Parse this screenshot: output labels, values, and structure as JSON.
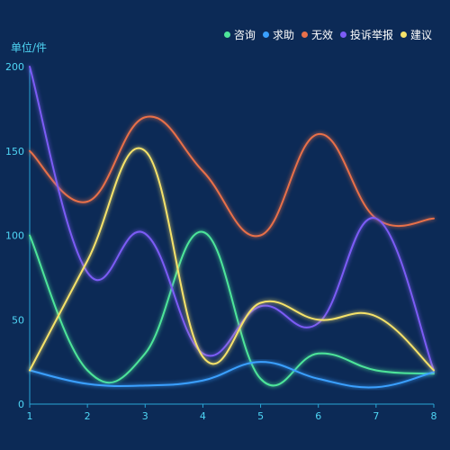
{
  "chart_data": {
    "type": "line",
    "unit_label": "单位/件",
    "x": [
      "1",
      "2",
      "3",
      "4",
      "5",
      "6",
      "7",
      "8"
    ],
    "ylim": [
      0,
      200
    ],
    "y_ticks": [
      "0",
      "50",
      "100",
      "150",
      "200"
    ],
    "series": [
      {
        "name": "咨询",
        "color": "#4ee59a",
        "values": [
          100,
          20,
          30,
          102,
          15,
          30,
          20,
          18
        ]
      },
      {
        "name": "求助",
        "color": "#3aa0ff",
        "values": [
          20,
          12,
          11,
          14,
          25,
          15,
          10,
          19
        ]
      },
      {
        "name": "无效",
        "color": "#e8704a",
        "values": [
          150,
          120,
          170,
          138,
          100,
          160,
          110,
          110
        ]
      },
      {
        "name": "投诉举报",
        "color": "#7b5cf5",
        "values": [
          200,
          78,
          101,
          30,
          58,
          48,
          110,
          20
        ]
      },
      {
        "name": "建议",
        "color": "#f5e26a",
        "values": [
          20,
          85,
          150,
          28,
          60,
          50,
          52,
          20
        ]
      }
    ],
    "grid": false,
    "legend_position": "top-right"
  }
}
